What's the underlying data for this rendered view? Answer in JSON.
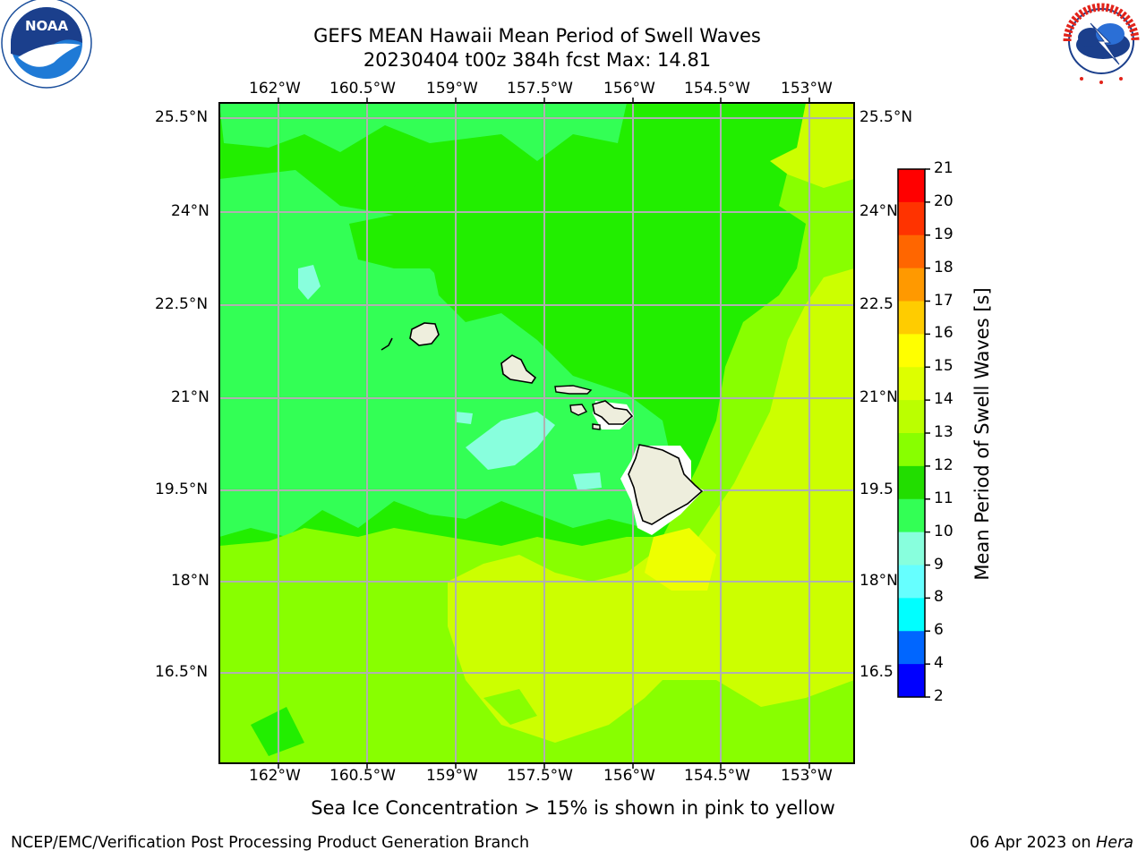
{
  "header": {
    "title_line1": "GEFS MEAN Hawaii Mean Period of Swell Waves",
    "title_line2": "20230404 t00z 384h fcst   Max: 14.81",
    "noaa_logo_text": "NOAA",
    "noaa_ring_text": "NATIONAL OCEANIC AND ATMOSPHERIC ADMINISTRATION · U.S. DEPARTMENT OF COMMERCE",
    "nws_ring_text": "NATIONAL WEATHER SERVICE"
  },
  "map": {
    "lon_labels": [
      "162°W",
      "160.5°W",
      "159°W",
      "157.5°W",
      "156°W",
      "154.5°W",
      "153°W"
    ],
    "lat_labels_left": [
      "25.5°N",
      "24°N",
      "22.5°N",
      "21°N",
      "19.5°N",
      "18°N",
      "16.5°N"
    ],
    "lat_labels_right": [
      "25.5°N",
      "24°N",
      "22.5",
      "21°N",
      "19.5",
      "18°N",
      "16.5"
    ],
    "grid": true,
    "colors": {
      "band_10_11": "#33ff55",
      "band_11_12": "#22ee00",
      "band_12_13": "#88ff00",
      "band_13_14": "#ccff00",
      "band_14_15": "#eeff00",
      "band_9_10": "#88ffdd",
      "land": "#eeeedd",
      "grid": "#b0b0b0"
    }
  },
  "colorbar": {
    "label": "Mean Period of Swell Waves [s]",
    "ticks": [
      "21",
      "20",
      "19",
      "18",
      "17",
      "16",
      "15",
      "14",
      "13",
      "12",
      "11",
      "10",
      "9",
      "8",
      "6",
      "4",
      "2"
    ],
    "colors": [
      "#ff0000",
      "#ff3300",
      "#ff6600",
      "#ff9900",
      "#ffcc00",
      "#ffff00",
      "#ddff00",
      "#bbff00",
      "#88ff00",
      "#22dd00",
      "#33ff55",
      "#88ffdd",
      "#66ffff",
      "#00ffff",
      "#0066ff",
      "#0000ff"
    ]
  },
  "note": "Sea Ice Concentration > 15% is shown in pink to yellow",
  "footer": {
    "left": "NCEP/EMC/Verification Post Processing Product Generation Branch",
    "date": "06 Apr 2023 on ",
    "machine": "Hera"
  }
}
